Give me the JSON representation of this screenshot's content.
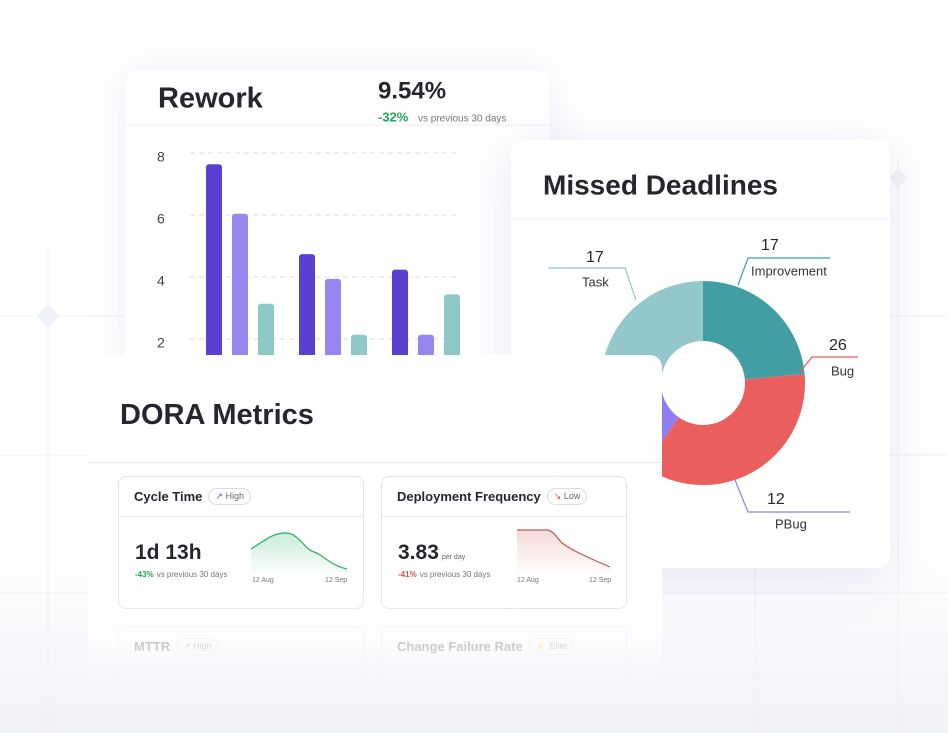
{
  "chart_data": [
    {
      "type": "bar",
      "title": "Rework",
      "summary": {
        "value": "9.54%",
        "change": "-32%",
        "note": "vs previous 30 days"
      },
      "ylim": [
        0,
        8
      ],
      "yticks": [
        2,
        4,
        6,
        8
      ],
      "grid": true,
      "series": [
        {
          "color": "#5b3fd0",
          "values": [
            7.8,
            4.9,
            4.4
          ]
        },
        {
          "color": "#9686ef",
          "values": [
            6.2,
            4.1,
            2.3
          ]
        },
        {
          "color": "#8ec9c8",
          "values": [
            3.3,
            2.3,
            3.6
          ]
        }
      ]
    },
    {
      "type": "pie",
      "title": "Missed Deadlines",
      "categories": [
        "Improvement",
        "Bug",
        "PBug",
        "Task"
      ],
      "values": [
        17,
        26,
        12,
        17
      ],
      "colors": [
        "#429ea3",
        "#eb5e5e",
        "#8f7ef0",
        "#92c8c9"
      ]
    }
  ],
  "dora": {
    "title": "DORA Metrics",
    "metrics": [
      {
        "name": "Cycle Time",
        "badge": "High",
        "value": "1d 13h",
        "change": "-43%",
        "note": "vs previous 30 days",
        "dates": [
          "12 Aug",
          "12 Sep"
        ]
      },
      {
        "name": "Deployment Frequency",
        "badge": "Low",
        "value": "3.83",
        "unit": "per day",
        "change": "-41%",
        "note": "vs previous 30 days",
        "dates": [
          "12 Aug",
          "12 Sep"
        ]
      },
      {
        "name": "MTTR",
        "badge": "High"
      },
      {
        "name": "Change Failure Rate",
        "badge": "Elite"
      }
    ]
  }
}
